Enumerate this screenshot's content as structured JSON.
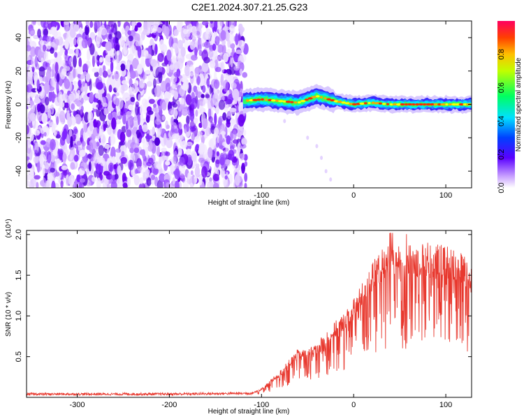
{
  "chart_data": [
    {
      "type": "heatmap",
      "title": "C2E1.2024.307.21.25.G23",
      "xlabel": "Height of straight line (km)",
      "ylabel": "Frequency (Hz)",
      "xlim": [
        -355,
        128
      ],
      "ylim": [
        -50,
        50
      ],
      "x_ticks": [
        "-300",
        "-200",
        "-100",
        "0",
        "100"
      ],
      "x_tick_values": [
        -300,
        -200,
        -100,
        0,
        100
      ],
      "y_ticks": [
        "-40",
        "-20",
        "0",
        "20",
        "40"
      ],
      "y_tick_values": [
        -40,
        -20,
        0,
        20,
        40
      ],
      "colorbar": {
        "label": "Normalized spectral amplitude",
        "range": [
          0,
          1
        ],
        "ticks": [
          "0.0",
          "0.2",
          "0.4",
          "0.6",
          "0.8"
        ],
        "tick_values": [
          0.0,
          0.2,
          0.4,
          0.6,
          0.8
        ],
        "colors": [
          "#ffffff",
          "#8a2be2",
          "#0000ff",
          "#00ffff",
          "#00ff00",
          "#ffff00",
          "#ff8000",
          "#ff0000"
        ]
      },
      "regions": {
        "noise_x_range": [
          -355,
          -117
        ],
        "signal_x_range": [
          -120,
          128
        ],
        "signal_center_trace": [
          [
            -120,
            2
          ],
          [
            -100,
            3
          ],
          [
            -80,
            2
          ],
          [
            -60,
            1
          ],
          [
            -40,
            5
          ],
          [
            -20,
            2
          ],
          [
            0,
            0
          ],
          [
            20,
            1
          ],
          [
            40,
            0
          ],
          [
            60,
            0
          ],
          [
            80,
            0
          ],
          [
            100,
            0
          ],
          [
            128,
            0
          ]
        ]
      }
    },
    {
      "type": "line",
      "xlabel": "Height of straight line (km)",
      "ylabel": "SNR (10 * v/v)",
      "y_multiplier": "(x10⁴)",
      "xlim": [
        -355,
        128
      ],
      "ylim": [
        0,
        2.05
      ],
      "x_ticks": [
        "-300",
        "-200",
        "-100",
        "0",
        "100"
      ],
      "x_tick_values": [
        -300,
        -200,
        -100,
        0,
        100
      ],
      "y_ticks": [
        "0.5",
        "1.0",
        "1.5",
        "2.0"
      ],
      "y_tick_values": [
        0.5,
        1.0,
        1.5,
        2.0
      ],
      "series_color": "#e8392f",
      "envelope": {
        "x": [
          -355,
          -300,
          -200,
          -110,
          -100,
          -90,
          -80,
          -70,
          -60,
          -50,
          -40,
          -30,
          -20,
          -10,
          0,
          10,
          20,
          30,
          40,
          50,
          60,
          70,
          80,
          90,
          100,
          110,
          120,
          128
        ],
        "y": [
          0.04,
          0.04,
          0.04,
          0.05,
          0.1,
          0.2,
          0.3,
          0.42,
          0.55,
          0.55,
          0.6,
          0.75,
          0.85,
          0.95,
          1.1,
          1.3,
          1.5,
          1.65,
          1.72,
          1.72,
          1.7,
          1.72,
          1.74,
          1.72,
          1.7,
          1.68,
          1.6,
          1.55
        ]
      }
    }
  ]
}
